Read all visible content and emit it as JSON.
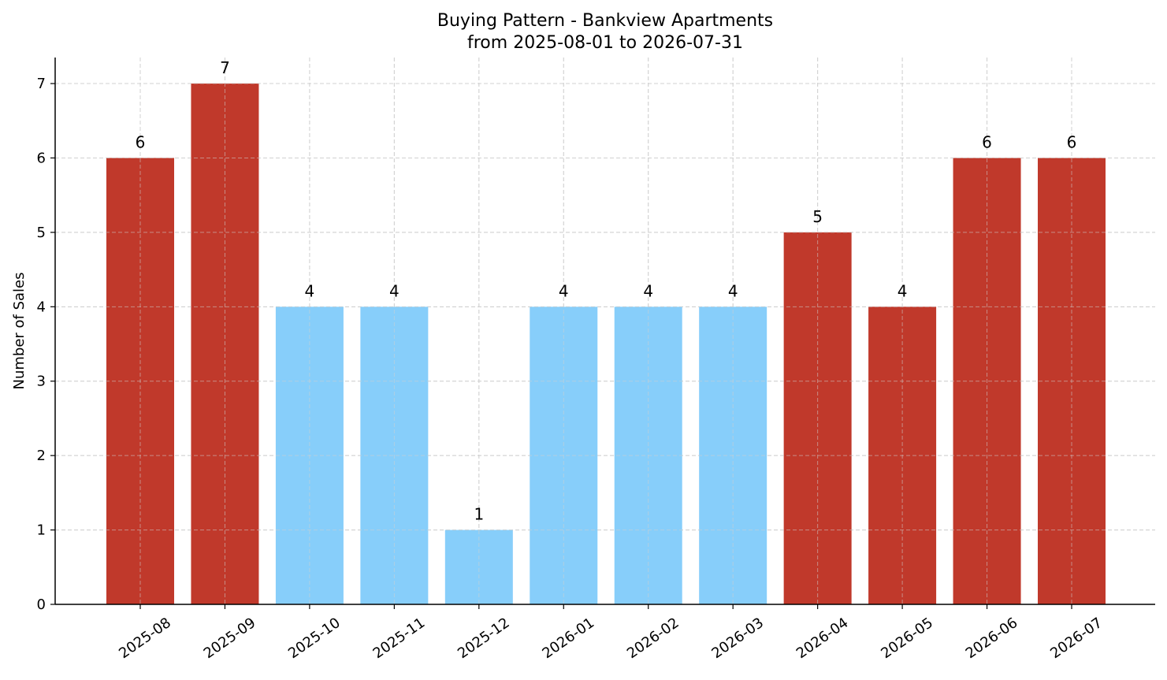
{
  "chart_data": {
    "type": "bar",
    "title": "Buying Pattern - Bankview Apartments",
    "subtitle": "from 2025-08-01 to 2026-07-31",
    "xlabel": "",
    "ylabel": "Number of Sales",
    "ylim": [
      0,
      7.35
    ],
    "yticks": [
      0,
      1,
      2,
      3,
      4,
      5,
      6,
      7
    ],
    "grid": true,
    "categories": [
      "2025-08",
      "2025-09",
      "2025-10",
      "2025-11",
      "2025-12",
      "2026-01",
      "2026-02",
      "2026-03",
      "2026-04",
      "2026-05",
      "2026-06",
      "2026-07"
    ],
    "values": [
      6,
      7,
      4,
      4,
      1,
      4,
      4,
      4,
      5,
      4,
      6,
      6
    ],
    "bar_colors": [
      "#c0392b",
      "#c0392b",
      "#87cefa",
      "#87cefa",
      "#87cefa",
      "#87cefa",
      "#87cefa",
      "#87cefa",
      "#c0392b",
      "#c0392b",
      "#c0392b",
      "#c0392b"
    ]
  }
}
